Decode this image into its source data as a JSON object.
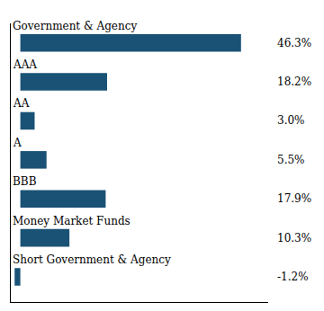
{
  "chart_data": {
    "type": "bar",
    "orientation": "horizontal",
    "categories": [
      "Government & Agency",
      "AAA",
      "AA",
      "A",
      "BBB",
      "Money Market Funds",
      "Short Government & Agency"
    ],
    "values": [
      46.3,
      18.2,
      3.0,
      5.5,
      17.9,
      10.3,
      -1.2
    ],
    "value_labels": [
      "46.3%",
      "18.2%",
      "3.0%",
      "5.5%",
      "17.9%",
      "10.3%",
      "-1.2%"
    ],
    "data_labels": true,
    "color": "#1a5276",
    "xlim": [
      -2,
      52
    ],
    "grid": false,
    "tick_labels": false
  }
}
